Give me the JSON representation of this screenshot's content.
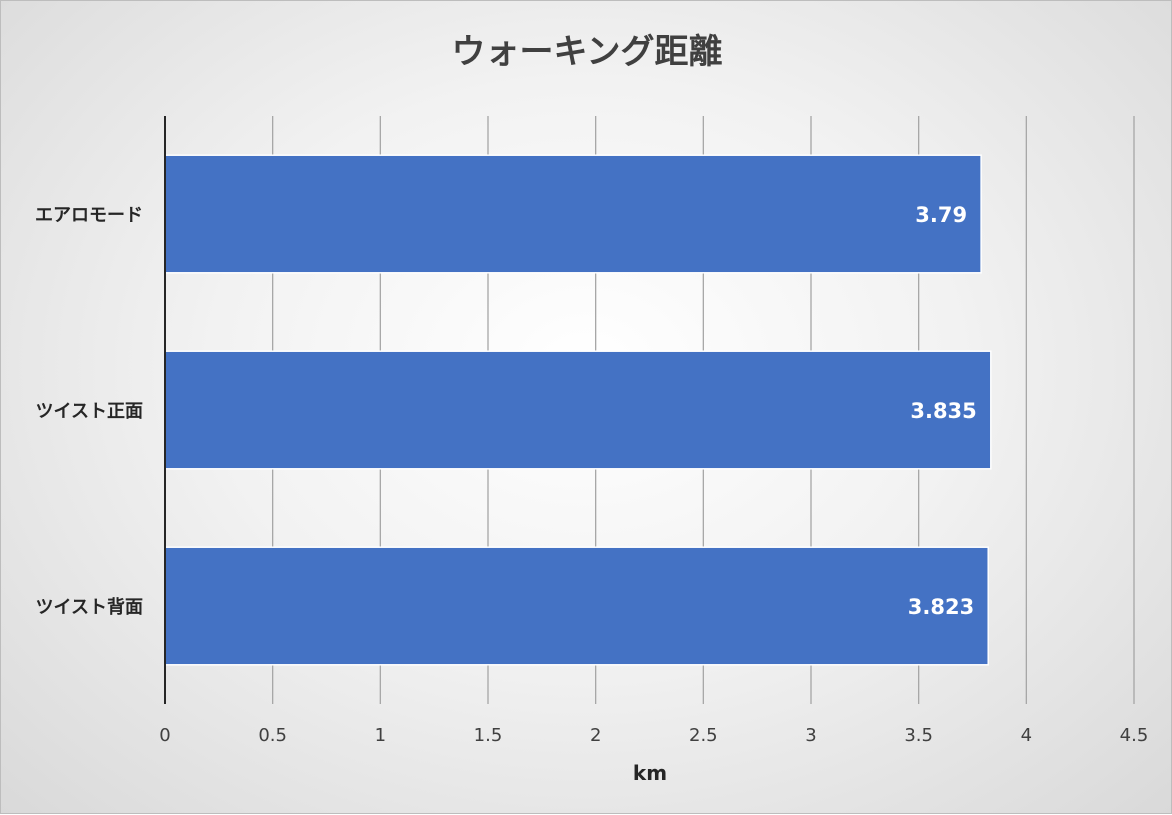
{
  "chart_data": {
    "type": "bar",
    "orientation": "horizontal",
    "title": "ウォーキング距離",
    "xlabel": "km",
    "ylabel": "",
    "categories": [
      "エアロモード",
      "ツイスト正面",
      "ツイスト背面"
    ],
    "values": [
      3.79,
      3.835,
      3.823
    ],
    "data_labels": [
      "3.79",
      "3.835",
      "3.823"
    ],
    "xlim": [
      0,
      4.5
    ],
    "x_ticks": [
      0,
      0.5,
      1,
      1.5,
      2,
      2.5,
      3,
      3.5,
      4,
      4.5
    ],
    "x_tick_labels": [
      "0",
      "0.5",
      "1",
      "1.5",
      "2",
      "2.5",
      "3",
      "3.5",
      "4",
      "4.5"
    ],
    "grid": "vertical",
    "legend": "none",
    "bar_color": "#4472C4"
  }
}
